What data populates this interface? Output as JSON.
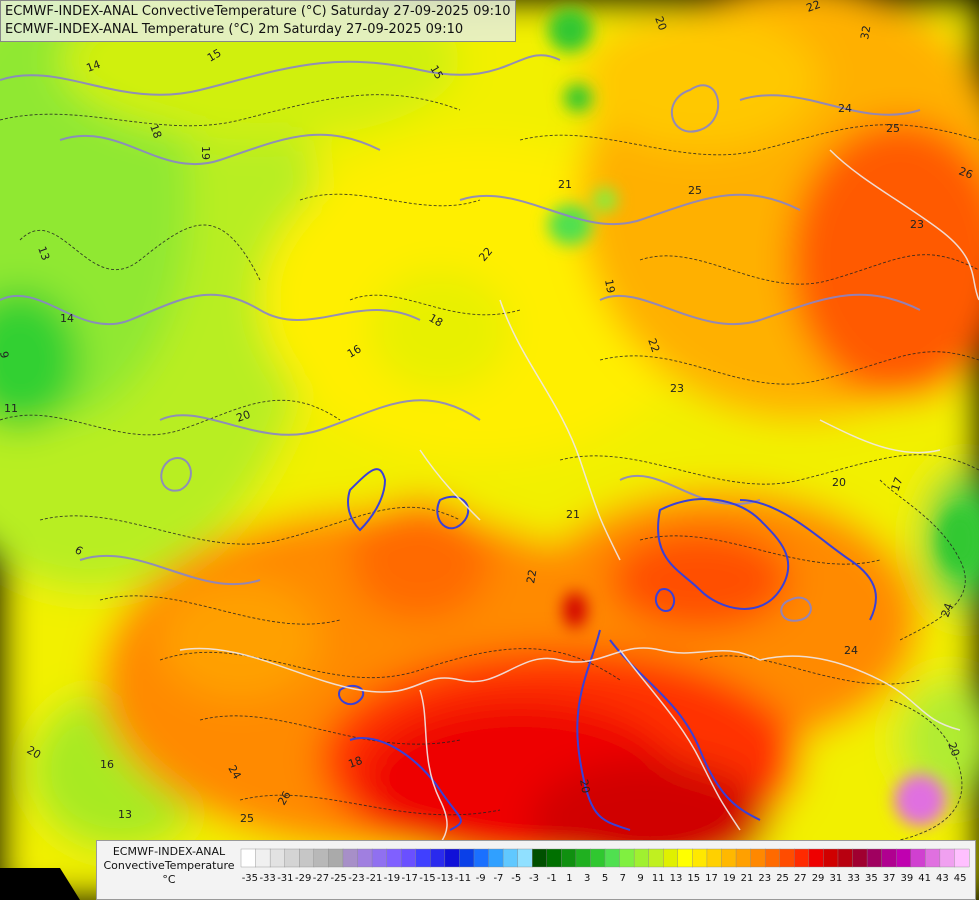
{
  "titles": {
    "line1": "ECMWF-INDEX-ANAL ConvectiveTemperature (°C) Saturday 27-09-2025 09:10",
    "line2": "ECMWF-INDEX-ANAL Temperature (°C) 2m Saturday 27-09-2025 09:10"
  },
  "legend": {
    "title_line1": "ECMWF-INDEX-ANAL",
    "title_line2": "ConvectiveTemperature",
    "unit": "°C",
    "tick_labels": [
      "-35",
      "-33",
      "-31",
      "-29",
      "-27",
      "-25",
      "-23",
      "-21",
      "-19",
      "-17",
      "-15",
      "-13",
      "-11",
      "-9",
      "-7",
      "-5",
      "-3",
      "-1",
      "1",
      "3",
      "5",
      "7",
      "9",
      "11",
      "13",
      "15",
      "17",
      "19",
      "21",
      "23",
      "25",
      "27",
      "29",
      "31",
      "33",
      "35",
      "37",
      "39",
      "41",
      "43",
      "45"
    ],
    "colors": [
      "#ffffff",
      "#f0f0f0",
      "#e2e2e2",
      "#d4d4d4",
      "#c6c6c6",
      "#b8b8b8",
      "#aaaaaa",
      "#a78fc8",
      "#a07fe0",
      "#9070f0",
      "#8060ff",
      "#6a50ff",
      "#4040ff",
      "#2a2aee",
      "#1010d8",
      "#0a40e8",
      "#1a70ff",
      "#30a0ff",
      "#60c8ff",
      "#90e0ff",
      "#005000",
      "#007000",
      "#109010",
      "#20b020",
      "#30c830",
      "#50e050",
      "#80f040",
      "#a0f030",
      "#c0f020",
      "#e0f000",
      "#ffff00",
      "#ffe800",
      "#ffd000",
      "#ffb800",
      "#ffa000",
      "#ff8800",
      "#ff6a00",
      "#ff4c00",
      "#ff2a00",
      "#ee0000",
      "#d00000",
      "#b80010",
      "#a00030",
      "#a00060",
      "#b00090",
      "#c000b0",
      "#d040d0",
      "#e070e0",
      "#f0a0f0",
      "#ffc0ff"
    ]
  },
  "contour_labels": [
    {
      "text": "14"
    },
    {
      "text": "15"
    },
    {
      "text": "15"
    },
    {
      "text": "18"
    },
    {
      "text": "19"
    },
    {
      "text": "13"
    },
    {
      "text": "14"
    },
    {
      "text": "11"
    },
    {
      "text": "9"
    },
    {
      "text": "20"
    },
    {
      "text": "16"
    },
    {
      "text": "20"
    },
    {
      "text": "21"
    },
    {
      "text": "22"
    },
    {
      "text": "19"
    },
    {
      "text": "25"
    },
    {
      "text": "24"
    },
    {
      "text": "25"
    },
    {
      "text": "26"
    },
    {
      "text": "23"
    },
    {
      "text": "22"
    },
    {
      "text": "23"
    },
    {
      "text": "20"
    },
    {
      "text": "17"
    },
    {
      "text": "21"
    },
    {
      "text": "22"
    },
    {
      "text": "24"
    },
    {
      "text": "20"
    },
    {
      "text": "16"
    },
    {
      "text": "24"
    },
    {
      "text": "26"
    },
    {
      "text": "25"
    },
    {
      "text": "13"
    },
    {
      "text": "18"
    },
    {
      "text": "20"
    },
    {
      "text": "22"
    },
    {
      "text": "18"
    },
    {
      "text": "6"
    },
    {
      "text": "20"
    },
    {
      "text": "32"
    },
    {
      "text": "24"
    }
  ]
}
